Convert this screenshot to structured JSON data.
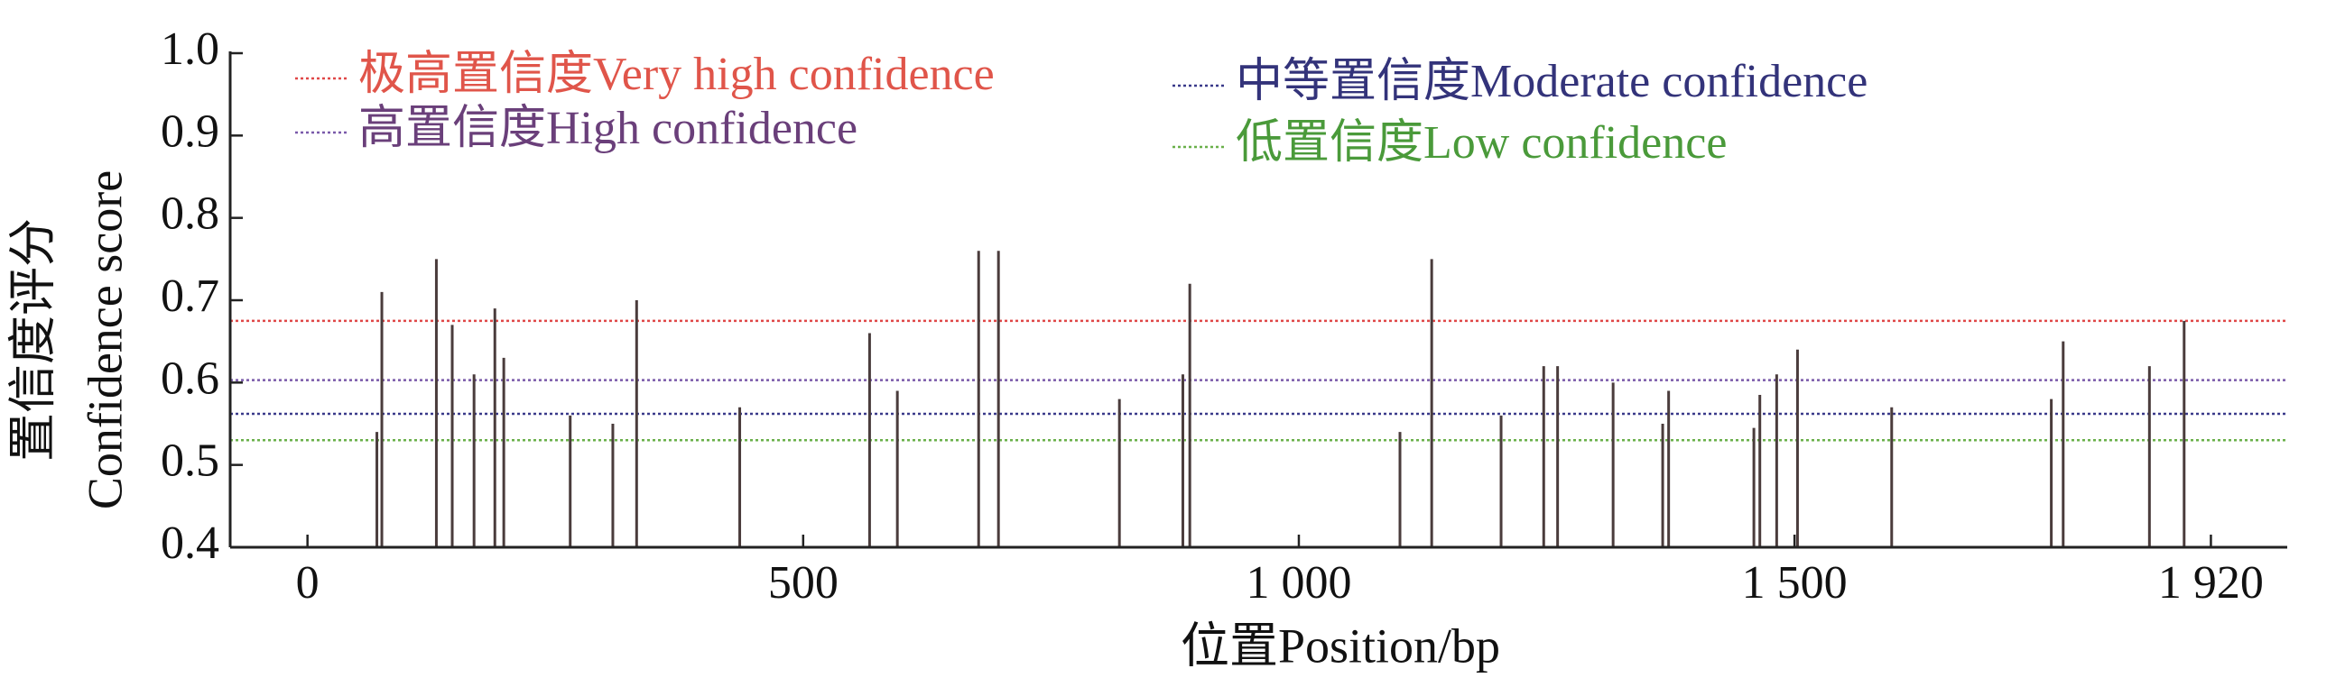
{
  "chart_data": {
    "type": "bar",
    "x_label": "位置Position/bp",
    "y_label": [
      "置信度评分",
      "Confidence score"
    ],
    "xlim": [
      -78,
      1997
    ],
    "ylim": [
      0.4,
      1.0
    ],
    "xticks": [
      0,
      500,
      {
        "value": 1000,
        "label": "1 000"
      },
      {
        "value": 1500,
        "label": "1 500"
      },
      {
        "value": 1920,
        "label": "1 920"
      }
    ],
    "yticks": [
      0.4,
      0.5,
      0.6,
      0.7,
      0.8,
      0.9,
      {
        "value": 1,
        "label": "1.0"
      }
    ],
    "color": "#4a3c3c",
    "x": [
      70,
      75,
      130,
      146,
      168,
      189,
      198,
      265,
      308,
      332,
      436,
      567,
      595,
      677,
      697,
      819,
      883,
      890,
      1102,
      1134,
      1204,
      1247,
      1261,
      1317,
      1367,
      1373,
      1459,
      1465,
      1482,
      1503,
      1598,
      1759,
      1771,
      1858,
      1893
    ],
    "values": [
      0.54,
      0.71,
      0.75,
      0.67,
      0.61,
      0.69,
      0.63,
      0.56,
      0.55,
      0.7,
      0.57,
      0.66,
      0.59,
      0.76,
      0.76,
      0.58,
      0.61,
      0.72,
      0.54,
      0.75,
      0.56,
      0.62,
      0.62,
      0.6,
      0.55,
      0.59,
      0.545,
      0.585,
      0.61,
      0.64,
      0.57,
      0.58,
      0.65,
      0.62,
      0.675
    ],
    "reference_lines": [
      {
        "name": "极高置信度Very high confidence",
        "value": 0.675,
        "color": "#e04848",
        "text_color": "#e0554a"
      },
      {
        "name": "高置信度High confidence",
        "value": 0.603,
        "color": "#7a5aaa",
        "text_color": "#6a3f7a"
      },
      {
        "name": "中等置信度Moderate confidence",
        "value": 0.562,
        "color": "#3a3a8a",
        "text_color": "#33337a"
      },
      {
        "name": "低置信度Low confidence",
        "value": 0.53,
        "color": "#6ab04a",
        "text_color": "#4a9a3a"
      }
    ]
  }
}
